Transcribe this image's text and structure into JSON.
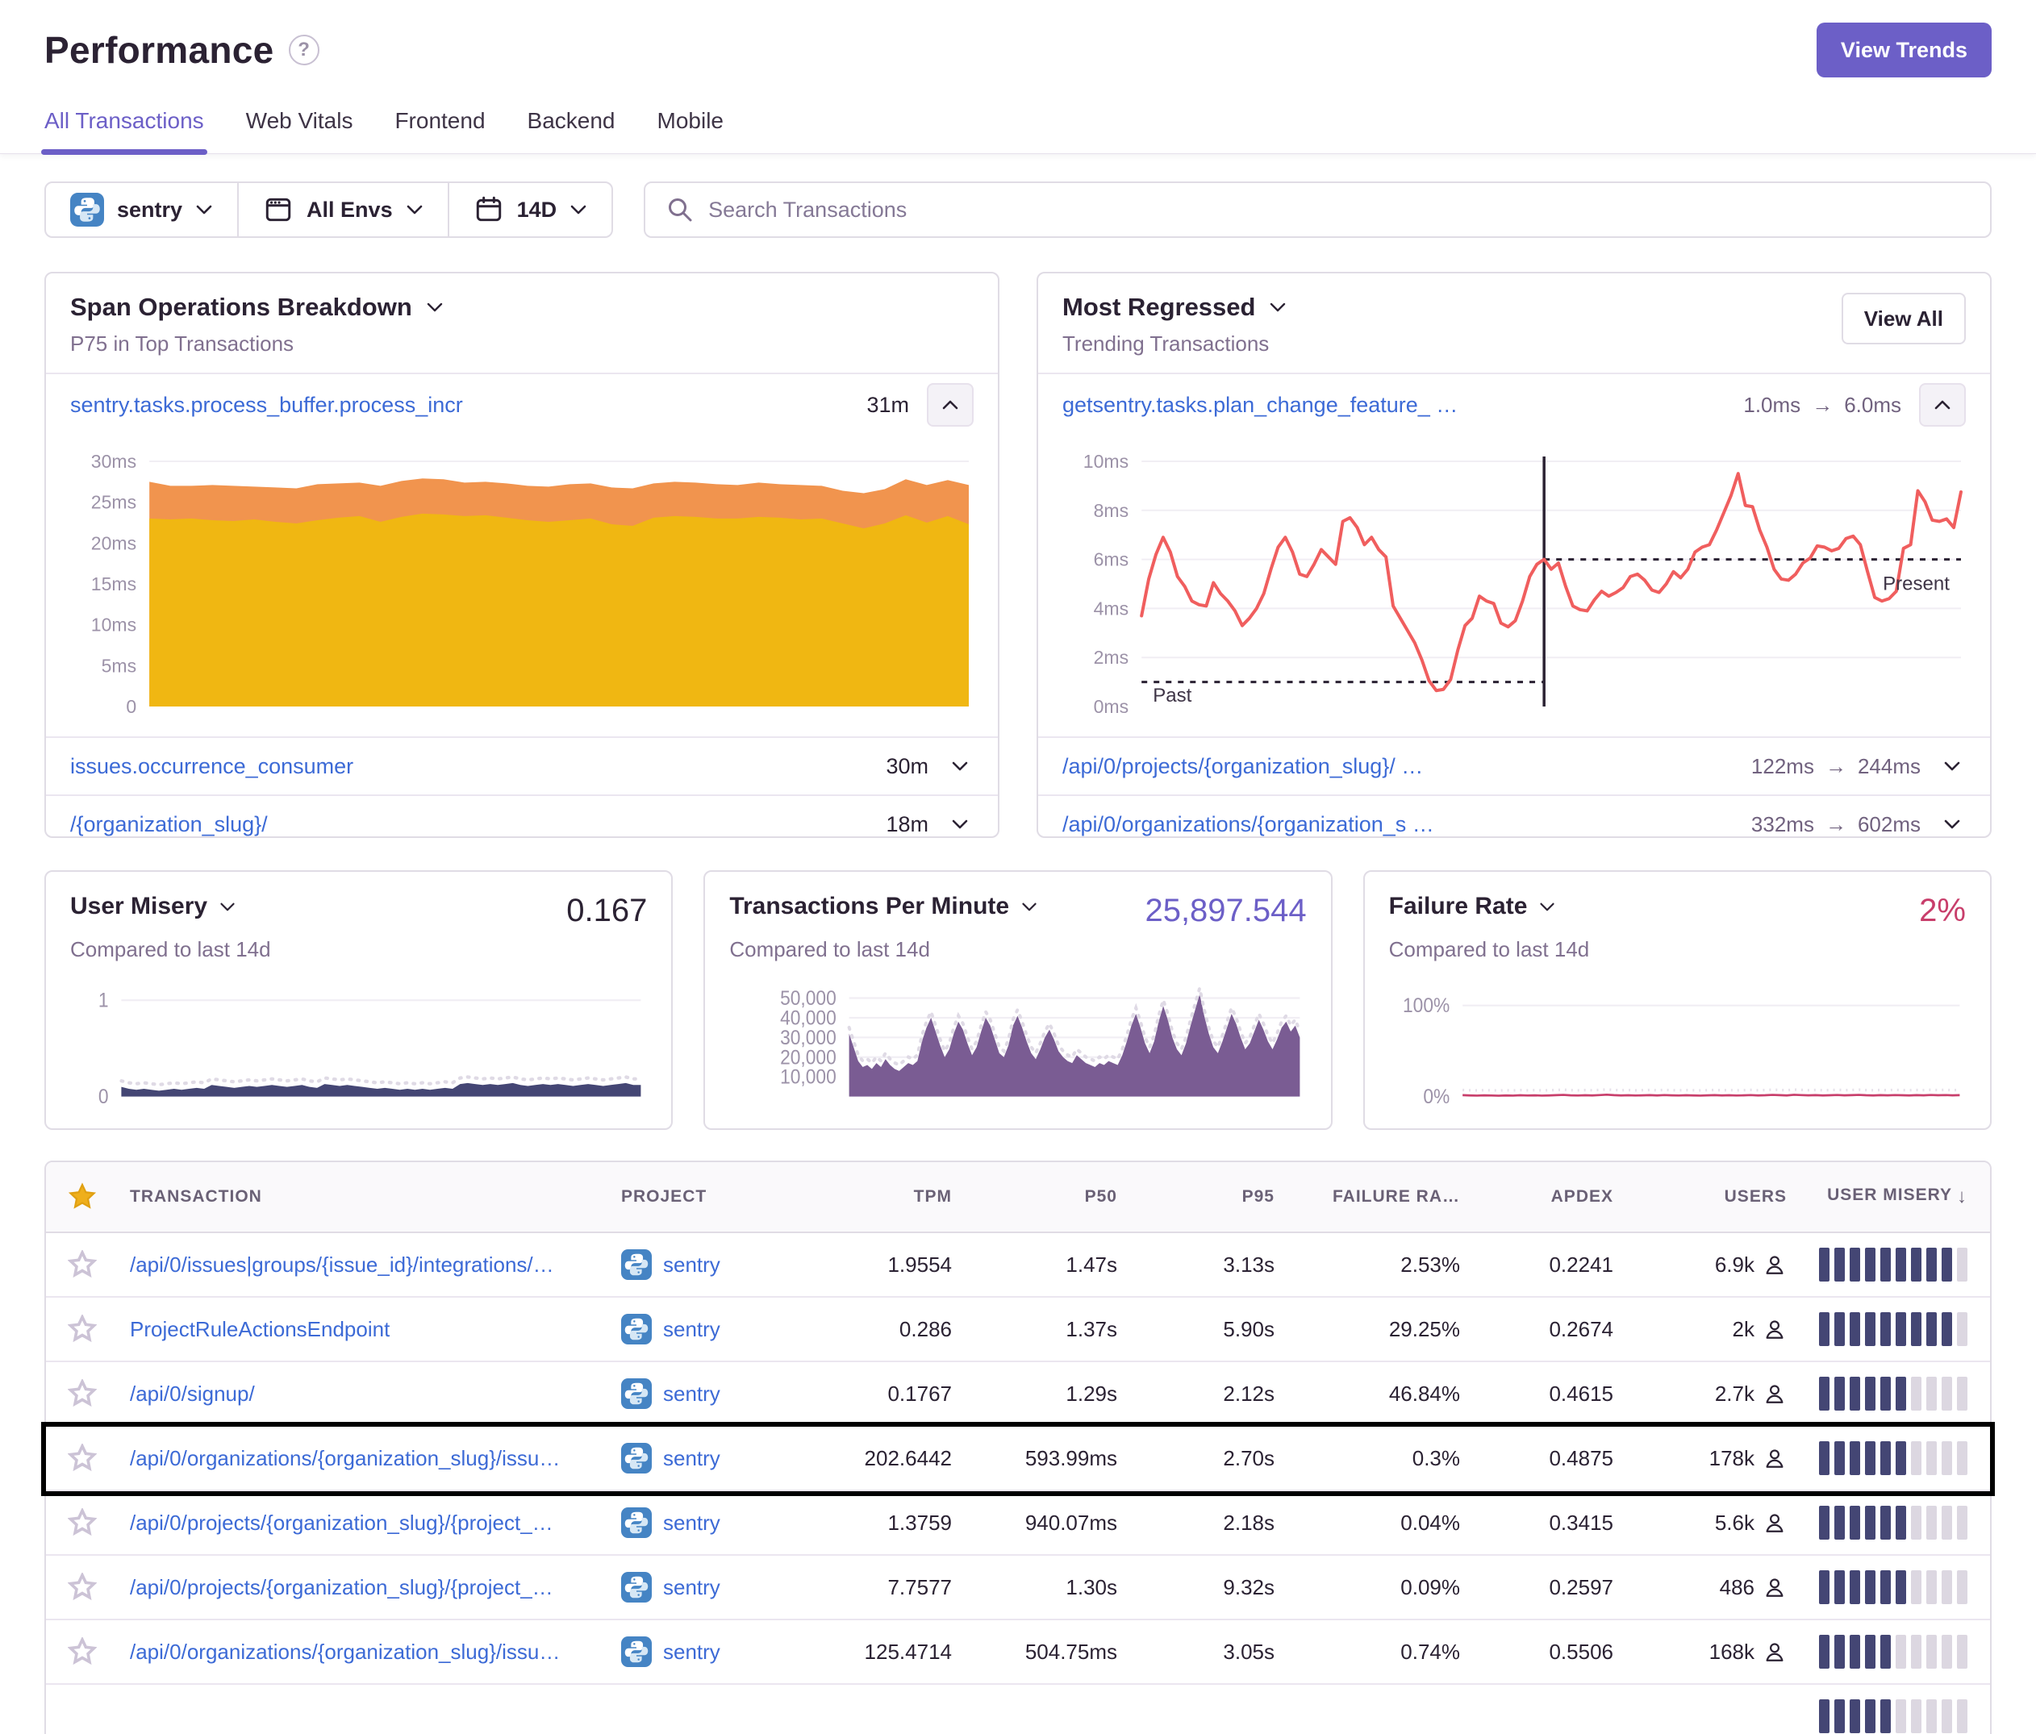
{
  "header": {
    "title": "Performance",
    "help": "?",
    "view_trends": "View Trends"
  },
  "tabs": [
    {
      "label": "All Transactions",
      "active": true
    },
    {
      "label": "Web Vitals",
      "active": false
    },
    {
      "label": "Frontend",
      "active": false
    },
    {
      "label": "Backend",
      "active": false
    },
    {
      "label": "Mobile",
      "active": false
    }
  ],
  "filters": {
    "project": "sentry",
    "environment": "All Envs",
    "date_range": "14D",
    "search_placeholder": "Search Transactions"
  },
  "span_breakdown": {
    "title": "Span Operations Breakdown",
    "subtitle": "P75 in Top Transactions",
    "items": [
      {
        "name": "sentry.tasks.process_buffer.process_incr",
        "value": "31m",
        "expanded": true
      },
      {
        "name": "issues.occurrence_consumer",
        "value": "30m",
        "expanded": false
      },
      {
        "name": "/{organization_slug}/",
        "value": "18m",
        "expanded": false
      }
    ]
  },
  "most_regressed": {
    "title": "Most Regressed",
    "subtitle": "Trending Transactions",
    "view_all": "View All",
    "arrow": "→",
    "items": [
      {
        "name": "getsentry.tasks.plan_change_feature_ …",
        "from": "1.0ms",
        "to": "6.0ms",
        "expanded": true
      },
      {
        "name": "/api/0/projects/{organization_slug}/ …",
        "from": "122ms",
        "to": "244ms",
        "expanded": false
      },
      {
        "name": "/api/0/organizations/{organization_s …",
        "from": "332ms",
        "to": "602ms",
        "expanded": false
      }
    ]
  },
  "mini_panels": [
    {
      "title": "User Misery",
      "value": "0.167",
      "subtitle": "Compared to last 14d"
    },
    {
      "title": "Transactions Per Minute",
      "value": "25,897.544",
      "subtitle": "Compared to last 14d"
    },
    {
      "title": "Failure Rate",
      "value": "2%",
      "subtitle": "Compared to last 14d"
    }
  ],
  "table": {
    "columns": [
      "Transaction",
      "Project",
      "TPM",
      "P50",
      "P95",
      "Failure Ra…",
      "Apdex",
      "Users",
      "User Misery"
    ],
    "sort_arrow": "↓",
    "rows": [
      {
        "transaction": "/api/0/issues|groups/{issue_id}/integrations/…",
        "project": "sentry",
        "tpm": "1.9554",
        "p50": "1.47s",
        "p95": "3.13s",
        "failure_rate": "2.53%",
        "apdex": "0.2241",
        "users": "6.9k",
        "misery_filled": 9,
        "highlighted": false
      },
      {
        "transaction": "ProjectRuleActionsEndpoint",
        "project": "sentry",
        "tpm": "0.286",
        "p50": "1.37s",
        "p95": "5.90s",
        "failure_rate": "29.25%",
        "apdex": "0.2674",
        "users": "2k",
        "misery_filled": 9,
        "highlighted": false
      },
      {
        "transaction": "/api/0/signup/",
        "project": "sentry",
        "tpm": "0.1767",
        "p50": "1.29s",
        "p95": "2.12s",
        "failure_rate": "46.84%",
        "apdex": "0.4615",
        "users": "2.7k",
        "misery_filled": 6,
        "highlighted": false
      },
      {
        "transaction": "/api/0/organizations/{organization_slug}/issu…",
        "project": "sentry",
        "tpm": "202.6442",
        "p50": "593.99ms",
        "p95": "2.70s",
        "failure_rate": "0.3%",
        "apdex": "0.4875",
        "users": "178k",
        "misery_filled": 6,
        "highlighted": true
      },
      {
        "transaction": "/api/0/projects/{organization_slug}/{project_…",
        "project": "sentry",
        "tpm": "1.3759",
        "p50": "940.07ms",
        "p95": "2.18s",
        "failure_rate": "0.04%",
        "apdex": "0.3415",
        "users": "5.6k",
        "misery_filled": 6,
        "highlighted": false
      },
      {
        "transaction": "/api/0/projects/{organization_slug}/{project_…",
        "project": "sentry",
        "tpm": "7.7577",
        "p50": "1.30s",
        "p95": "9.32s",
        "failure_rate": "0.09%",
        "apdex": "0.2597",
        "users": "486",
        "misery_filled": 6,
        "highlighted": false
      },
      {
        "transaction": "/api/0/organizations/{organization_slug}/issu…",
        "project": "sentry",
        "tpm": "125.4714",
        "p50": "504.75ms",
        "p95": "3.05s",
        "failure_rate": "0.74%",
        "apdex": "0.5506",
        "users": "168k",
        "misery_filled": 5,
        "highlighted": false
      },
      {
        "transaction": "",
        "project": "",
        "tpm": "",
        "p50": "",
        "p95": "",
        "failure_rate": "",
        "apdex": "",
        "users": "",
        "misery_filled": 5,
        "highlighted": false,
        "partial": true
      }
    ]
  },
  "chart_data": [
    {
      "id": "span_breakdown",
      "type": "stacked-area",
      "title": "Span Operations Breakdown P75 in Top Transactions",
      "vmax": 30,
      "ylim": [
        0,
        30
      ],
      "plot": {
        "x0": 100,
        "x1": 1114,
        "y0": 26,
        "y1": 330
      },
      "ticks": [
        {
          "label": "30ms",
          "v": 30,
          "grid": true
        },
        {
          "label": "25ms",
          "v": 25
        },
        {
          "label": "20ms",
          "v": 20
        },
        {
          "label": "15ms",
          "v": 15
        },
        {
          "label": "10ms",
          "v": 10
        },
        {
          "label": "5ms",
          "v": 5
        },
        {
          "label": "0",
          "v": 0
        }
      ],
      "series": [
        {
          "name": "stack-total",
          "color": "#F1944E",
          "values": [
            27.5,
            27,
            27,
            27.1,
            27,
            26.9,
            26.8,
            26.7,
            27.2,
            27.3,
            27.4,
            27,
            27.6,
            27.9,
            27.8,
            27.4,
            27.5,
            27.3,
            27,
            26.9,
            27.2,
            27.3,
            26.8,
            26.7,
            27.3,
            27.5,
            27.4,
            27.2,
            27.1,
            27.4,
            27.2,
            27.1,
            27,
            26.4,
            26.1,
            26.6,
            27.8,
            27.1,
            27.7,
            27.1
          ]
        },
        {
          "name": "stack-base",
          "color": "#F0B712",
          "values": [
            23,
            22.9,
            23,
            22.8,
            22.7,
            22.9,
            22.6,
            22.4,
            22.8,
            23.1,
            23.3,
            22.6,
            23.2,
            23.6,
            23.5,
            23.3,
            23.4,
            23.1,
            22.8,
            22.6,
            22.8,
            23,
            22.3,
            22.1,
            23.1,
            23.3,
            23.2,
            23,
            23,
            23.2,
            23.1,
            22.9,
            23,
            22.4,
            21.8,
            22.4,
            23.4,
            22.5,
            23.3,
            22.3
          ]
        }
      ]
    },
    {
      "id": "most_regressed",
      "type": "line-regression",
      "title": "Most Regressed Trending Transactions",
      "vmax": 10,
      "ylim": [
        0,
        10
      ],
      "color": "#F05E5E",
      "plot": {
        "x0": 100,
        "x1": 1114,
        "y0": 26,
        "y1": 330
      },
      "ticks": [
        {
          "label": "10ms",
          "v": 10,
          "grid": true
        },
        {
          "label": "8ms",
          "v": 8,
          "grid": true
        },
        {
          "label": "6ms",
          "v": 6,
          "grid": true
        },
        {
          "label": "4ms",
          "v": 4,
          "grid": true
        },
        {
          "label": "2ms",
          "v": 2,
          "grid": true
        },
        {
          "label": "0ms",
          "v": 0
        }
      ],
      "past_baseline": 1.0,
      "present_baseline": 6.0,
      "divider_index": 56,
      "past_label": "Past",
      "present_label": "Present",
      "values": [
        3.7,
        5.2,
        6.2,
        6.9,
        6.3,
        5.3,
        4.9,
        4.3,
        4.15,
        4.1,
        5.05,
        4.6,
        4.3,
        3.9,
        3.3,
        3.6,
        4.0,
        4.6,
        5.6,
        6.5,
        6.9,
        6.3,
        5.4,
        5.3,
        5.8,
        6.4,
        6.1,
        5.8,
        7.55,
        7.7,
        7.3,
        6.6,
        6.9,
        6.4,
        6.1,
        4.1,
        3.6,
        3.1,
        2.6,
        1.9,
        1.05,
        0.65,
        0.7,
        1.1,
        2.3,
        3.3,
        3.6,
        4.5,
        4.3,
        4.2,
        3.4,
        3.25,
        3.5,
        4.3,
        5.3,
        5.8,
        6.0,
        5.6,
        5.85,
        4.9,
        4.1,
        3.95,
        3.9,
        4.35,
        4.7,
        4.5,
        4.65,
        4.85,
        5.3,
        5.4,
        5.15,
        4.75,
        4.65,
        5.0,
        5.5,
        5.25,
        5.6,
        6.3,
        6.5,
        6.6,
        7.2,
        7.9,
        8.6,
        9.5,
        8.2,
        8.15,
        7.2,
        6.5,
        5.6,
        5.2,
        5.15,
        5.4,
        5.85,
        6.05,
        6.55,
        6.5,
        6.35,
        6.45,
        6.85,
        6.95,
        6.6,
        5.5,
        4.45,
        4.3,
        4.4,
        4.7,
        6.45,
        6.6,
        8.8,
        8.35,
        7.6,
        7.55,
        7.65,
        7.3,
        8.75
      ]
    },
    {
      "id": "user_misery",
      "type": "mini-area",
      "title": "User Misery Compared to last 14d",
      "vmax": 1.04,
      "ylim": [
        0,
        1
      ],
      "color": "#444674",
      "plot": {
        "x0": 64,
        "x1": 714,
        "y0": 34,
        "y1": 150
      },
      "ticks": [
        {
          "label": "1",
          "v": 1,
          "grid": true
        },
        {
          "label": "0",
          "v": 0
        }
      ],
      "values": [
        0.1,
        0.08,
        0.07,
        0.08,
        0.07,
        0.06,
        0.07,
        0.08,
        0.07,
        0.08,
        0.09,
        0.08,
        0.12,
        0.11,
        0.1,
        0.09,
        0.1,
        0.11,
        0.1,
        0.11,
        0.12,
        0.11,
        0.1,
        0.11,
        0.12,
        0.1,
        0.09,
        0.13,
        0.12,
        0.11,
        0.12,
        0.11,
        0.1,
        0.09,
        0.08,
        0.09,
        0.08,
        0.07,
        0.08,
        0.07,
        0.08,
        0.07,
        0.08,
        0.09,
        0.08,
        0.13,
        0.14,
        0.13,
        0.12,
        0.13,
        0.12,
        0.13,
        0.14,
        0.12,
        0.11,
        0.12,
        0.13,
        0.12,
        0.13,
        0.12,
        0.11,
        0.12,
        0.13,
        0.12,
        0.11,
        0.12,
        0.13,
        0.14,
        0.12,
        0.12
      ]
    },
    {
      "id": "tpm",
      "type": "mini-area",
      "title": "Transactions Per Minute Compared to last 14d",
      "vmax": 57000,
      "ylim": [
        0,
        57000
      ],
      "color": "#7A5C93",
      "plot": {
        "x0": 150,
        "x1": 714,
        "y0": 20,
        "y1": 150
      },
      "ticks": [
        {
          "label": "50,000",
          "v": 50000,
          "grid": true
        },
        {
          "label": "40,000",
          "v": 40000,
          "grid": true
        },
        {
          "label": "30,000",
          "v": 30000,
          "grid": true
        },
        {
          "label": "20,000",
          "v": 20000,
          "grid": true
        },
        {
          "label": "10,000",
          "v": 10000,
          "grid": true
        }
      ],
      "values": [
        32000,
        25000,
        18000,
        15000,
        16000,
        14000,
        17000,
        15000,
        19000,
        16000,
        14000,
        13000,
        15000,
        17000,
        16000,
        18000,
        28000,
        35000,
        40000,
        33000,
        26000,
        20000,
        24000,
        32000,
        38000,
        34000,
        27000,
        21000,
        25000,
        33000,
        40000,
        36000,
        29000,
        22000,
        20000,
        26000,
        36000,
        41000,
        35000,
        28000,
        22000,
        19000,
        24000,
        30000,
        34000,
        29000,
        23000,
        20000,
        18000,
        17000,
        21000,
        19000,
        17000,
        16000,
        15000,
        17000,
        16000,
        18000,
        17000,
        16000,
        21000,
        28000,
        36000,
        42000,
        35000,
        27000,
        22000,
        28000,
        38000,
        46000,
        39000,
        30000,
        24000,
        21000,
        27000,
        36000,
        44000,
        52000,
        41000,
        32000,
        25000,
        22000,
        28000,
        35000,
        42000,
        37000,
        30000,
        24000,
        27000,
        33000,
        39000,
        34000,
        28000,
        24000,
        29000,
        35000,
        38000,
        33000,
        36000,
        30000
      ]
    },
    {
      "id": "failure_rate",
      "type": "mini-line",
      "title": "Failure Rate Compared to last 14d",
      "vmax": 110,
      "ylim": [
        0,
        100
      ],
      "color": "#C83E6B",
      "plot": {
        "x0": 92,
        "x1": 714,
        "y0": 34,
        "y1": 150
      },
      "ticks": [
        {
          "label": "100%",
          "v": 100,
          "grid": true
        },
        {
          "label": "0%",
          "v": 0
        }
      ],
      "values": [
        1.5,
        1.2,
        1,
        1.3,
        1.1,
        0.9,
        1.2,
        1,
        1.4,
        1.1,
        1.3,
        1,
        1.2,
        1.5,
        1.8,
        1.3,
        1.1,
        1.4,
        1.2,
        1.6,
        2,
        1.5,
        1.2,
        1.4,
        1.1,
        1.3,
        1.5,
        1.2,
        1.6,
        1.3,
        1.1,
        1.4,
        1.2,
        1,
        1.3,
        1.5,
        1.2,
        1.4,
        1.1,
        1.3,
        1.6,
        1.2,
        1.4,
        1.8,
        1.5,
        1.2,
        1.9,
        1.6,
        1.3,
        1.5,
        1.2,
        1.4,
        1.7,
        1.3,
        1.5,
        1.8,
        1.4,
        1.2,
        1.5,
        1.3,
        1.6,
        1.4,
        1.2,
        1.5,
        1.3,
        1.7,
        1.4,
        1.6,
        1.3,
        1.5
      ]
    }
  ]
}
